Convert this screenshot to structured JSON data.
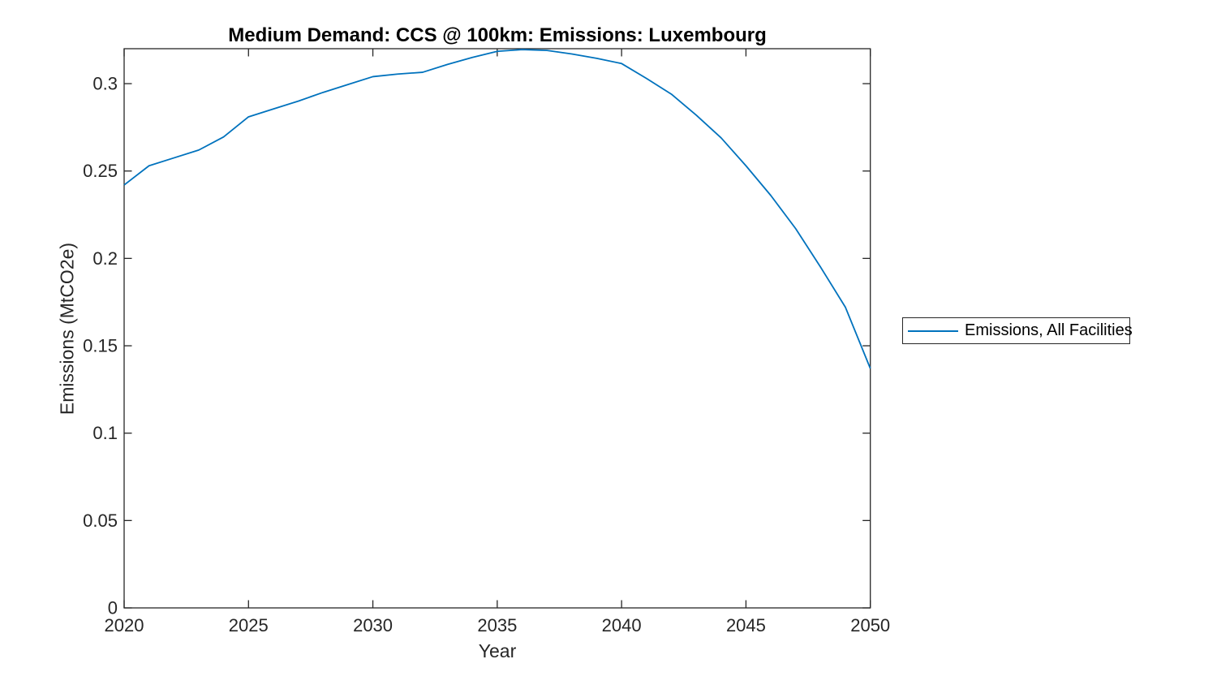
{
  "chart_data": {
    "type": "line",
    "title": "Medium Demand: CCS @ 100km: Emissions: Luxembourg",
    "xlabel": "Year",
    "ylabel": "Emissions (MtCO2e)",
    "xlim": [
      2020,
      2050
    ],
    "ylim": [
      0,
      0.32
    ],
    "x_ticks": [
      2020,
      2025,
      2030,
      2035,
      2040,
      2045,
      2050
    ],
    "x_tick_labels": [
      "2020",
      "2025",
      "2030",
      "2035",
      "2040",
      "2045",
      "2050"
    ],
    "y_ticks": [
      0,
      0.05,
      0.1,
      0.15,
      0.2,
      0.25,
      0.3
    ],
    "y_tick_labels": [
      "0",
      "0.05",
      "0.1",
      "0.15",
      "0.2",
      "0.25",
      "0.3"
    ],
    "grid": false,
    "legend": {
      "position": "right-outside",
      "entries": [
        {
          "label": "Emissions, All Facilities",
          "color": "#0072BD"
        }
      ]
    },
    "series": [
      {
        "name": "Emissions, All Facilities",
        "color": "#0072BD",
        "x": [
          2020,
          2021,
          2022,
          2023,
          2024,
          2025,
          2026,
          2027,
          2028,
          2029,
          2030,
          2031,
          2032,
          2033,
          2034,
          2035,
          2036,
          2037,
          2038,
          2039,
          2040,
          2041,
          2042,
          2043,
          2044,
          2045,
          2046,
          2047,
          2048,
          2049,
          2050
        ],
        "values": [
          0.242,
          0.253,
          0.2575,
          0.262,
          0.2695,
          0.281,
          0.2855,
          0.29,
          0.295,
          0.2995,
          0.304,
          0.3055,
          0.3065,
          0.311,
          0.315,
          0.3185,
          0.3195,
          0.319,
          0.317,
          0.3145,
          0.3115,
          0.303,
          0.294,
          0.282,
          0.269,
          0.253,
          0.236,
          0.217,
          0.195,
          0.172,
          0.137
        ]
      }
    ]
  },
  "colors": {
    "line": "#0072BD",
    "axis": "#262626",
    "tick_text": "#262626",
    "title_text": "#000000",
    "background": "#ffffff"
  }
}
